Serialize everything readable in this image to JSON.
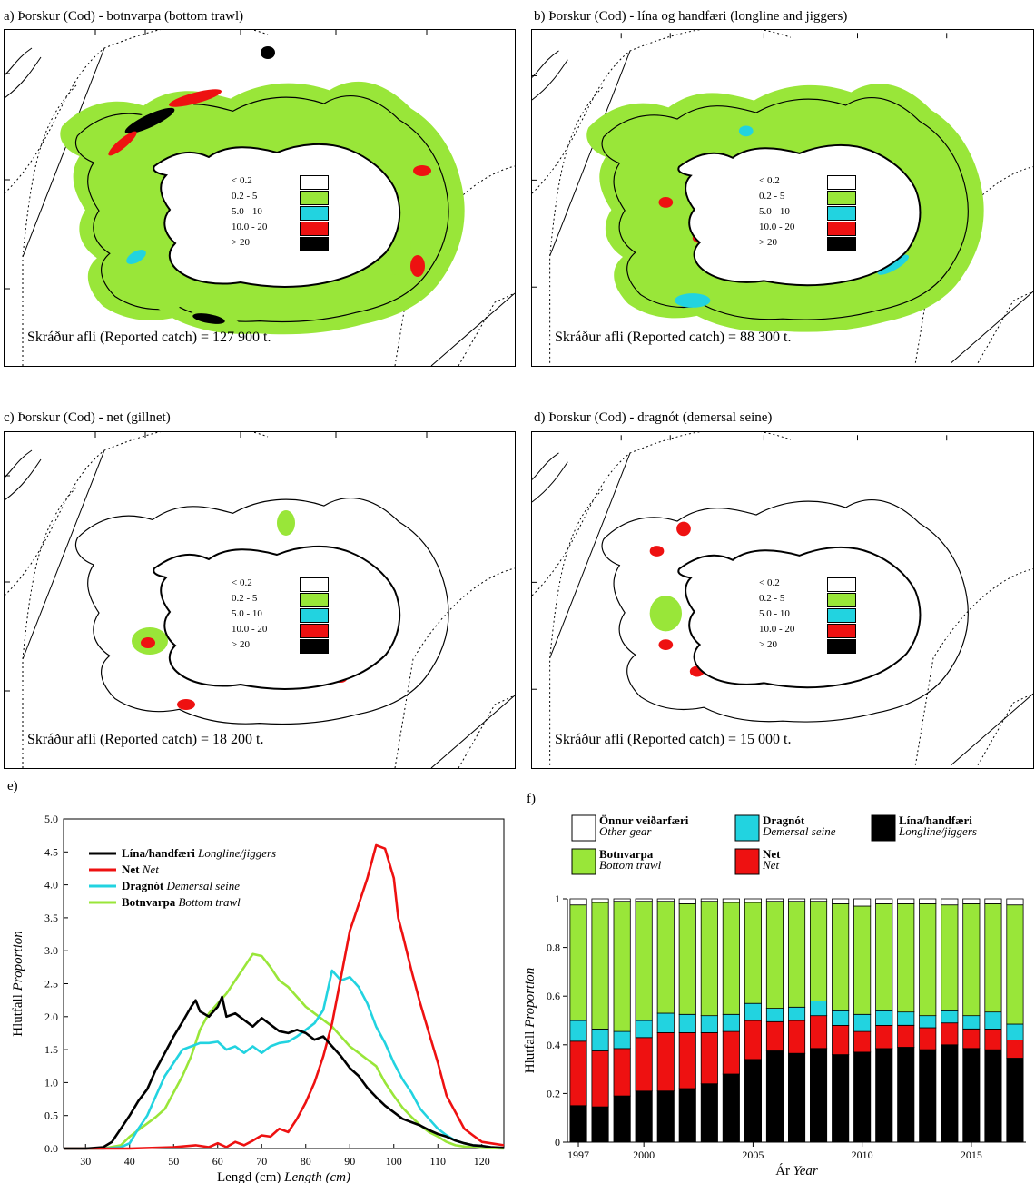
{
  "maps": [
    {
      "label": "a) Þorskur (Cod) - botnvarpa (bottom trawl)",
      "catch": "Skráður afli (Reported catch) = 127 900 t."
    },
    {
      "label": "b) Þorskur (Cod) - lína og handfæri (longline and jiggers)",
      "catch": "Skráður afli (Reported catch) = 88 300 t."
    },
    {
      "label": "c) Þorskur (Cod) - net (gillnet)",
      "catch": "Skráður afli (Reported catch) = 18 200 t."
    },
    {
      "label": "d) Þorskur (Cod) - dragnót (demersal seine)",
      "catch": "Skráður afli (Reported catch) = 15 000 t."
    }
  ],
  "map_legend": {
    "labels": [
      "< 0.2",
      "0.2 -  5",
      "5.0 - 10",
      "10.0 - 20",
      "> 20"
    ],
    "colors": [
      "#ffffff",
      "#99e639",
      "#22d3e0",
      "#ee1111",
      "#000000"
    ]
  },
  "panel_e_label": "e)",
  "panel_f_label": "f)",
  "chart_data": [
    {
      "type": "line",
      "xlabel": "Lengd (cm)",
      "xlabel_en": "Length (cm)",
      "ylabel": "Hlutfall",
      "ylabel_en": "Proportion",
      "xlim": [
        25,
        125
      ],
      "ylim": [
        0,
        5
      ],
      "xticks": [
        30,
        40,
        50,
        60,
        70,
        80,
        90,
        100,
        110,
        120
      ],
      "yticks": [
        "0.0",
        "0.5",
        "1.0",
        "1.5",
        "2.0",
        "2.5",
        "3.0",
        "3.5",
        "4.0",
        "4.5",
        "5.0"
      ],
      "legend_position": "top-left",
      "series": [
        {
          "name": "Lína/handfæri",
          "name_en": "Longline/jiggers",
          "color": "#000000",
          "x": [
            25,
            30,
            34,
            36,
            38,
            40,
            42,
            44,
            46,
            48,
            50,
            52,
            54,
            55,
            56,
            58,
            60,
            61,
            62,
            64,
            66,
            68,
            70,
            72,
            74,
            76,
            78,
            80,
            82,
            84,
            86,
            88,
            90,
            92,
            94,
            96,
            98,
            100,
            102,
            104,
            106,
            108,
            110,
            112,
            114,
            116,
            118,
            120,
            122,
            125
          ],
          "y": [
            0,
            0,
            0.02,
            0.1,
            0.3,
            0.5,
            0.72,
            0.9,
            1.2,
            1.45,
            1.7,
            1.92,
            2.15,
            2.25,
            2.08,
            2.0,
            2.15,
            2.3,
            2.0,
            2.05,
            1.95,
            1.85,
            1.98,
            1.88,
            1.78,
            1.75,
            1.8,
            1.75,
            1.65,
            1.7,
            1.55,
            1.4,
            1.22,
            1.1,
            0.92,
            0.78,
            0.65,
            0.55,
            0.45,
            0.4,
            0.35,
            0.28,
            0.22,
            0.18,
            0.12,
            0.08,
            0.05,
            0.04,
            0.02,
            0.01
          ]
        },
        {
          "name": "Net",
          "name_en": "Net",
          "color": "#ee1111",
          "x": [
            25,
            40,
            50,
            55,
            58,
            60,
            62,
            64,
            66,
            68,
            70,
            72,
            74,
            76,
            78,
            80,
            82,
            84,
            86,
            88,
            90,
            92,
            94,
            96,
            98,
            100,
            101,
            102,
            104,
            106,
            108,
            110,
            112,
            114,
            116,
            118,
            120,
            122,
            125
          ],
          "y": [
            0,
            0,
            0.02,
            0.05,
            0.02,
            0.08,
            0.02,
            0.1,
            0.05,
            0.12,
            0.2,
            0.18,
            0.3,
            0.25,
            0.45,
            0.7,
            1.0,
            1.4,
            1.9,
            2.6,
            3.3,
            3.7,
            4.1,
            4.6,
            4.55,
            4.1,
            3.5,
            3.25,
            2.7,
            2.2,
            1.75,
            1.3,
            0.8,
            0.55,
            0.3,
            0.2,
            0.1,
            0.08,
            0.05
          ]
        },
        {
          "name": "Dragnót",
          "name_en": "Demersal seine",
          "color": "#22d3e0",
          "x": [
            25,
            34,
            38,
            40,
            42,
            44,
            46,
            48,
            50,
            52,
            54,
            56,
            58,
            60,
            62,
            64,
            66,
            68,
            70,
            72,
            74,
            76,
            78,
            80,
            82,
            84,
            86,
            88,
            90,
            92,
            94,
            96,
            98,
            100,
            102,
            104,
            106,
            108,
            110,
            112,
            114,
            116,
            118,
            120,
            122,
            125
          ],
          "y": [
            0,
            0,
            0.02,
            0.08,
            0.3,
            0.5,
            0.8,
            1.1,
            1.3,
            1.5,
            1.55,
            1.6,
            1.6,
            1.62,
            1.5,
            1.55,
            1.45,
            1.55,
            1.45,
            1.55,
            1.6,
            1.62,
            1.7,
            1.8,
            1.9,
            2.1,
            2.7,
            2.55,
            2.6,
            2.45,
            2.2,
            1.85,
            1.6,
            1.3,
            1.05,
            0.85,
            0.6,
            0.45,
            0.3,
            0.2,
            0.12,
            0.08,
            0.05,
            0.04,
            0.02,
            0.01
          ]
        },
        {
          "name": "Botnvarpa",
          "name_en": "Bottom trawl",
          "color": "#99e639",
          "x": [
            25,
            34,
            38,
            40,
            42,
            44,
            46,
            48,
            50,
            52,
            54,
            56,
            58,
            60,
            62,
            64,
            66,
            68,
            70,
            72,
            74,
            76,
            78,
            80,
            82,
            84,
            86,
            88,
            90,
            92,
            94,
            96,
            98,
            100,
            102,
            104,
            106,
            108,
            110,
            112,
            114,
            116,
            118,
            120,
            125
          ],
          "y": [
            0,
            0,
            0.05,
            0.18,
            0.28,
            0.38,
            0.48,
            0.6,
            0.85,
            1.1,
            1.4,
            1.8,
            2.05,
            2.2,
            2.35,
            2.55,
            2.75,
            2.95,
            2.92,
            2.75,
            2.55,
            2.45,
            2.3,
            2.15,
            2.05,
            1.95,
            1.85,
            1.7,
            1.55,
            1.45,
            1.35,
            1.25,
            1.0,
            0.8,
            0.62,
            0.48,
            0.35,
            0.25,
            0.18,
            0.1,
            0.05,
            0.03,
            0.02,
            0.01,
            0
          ]
        }
      ]
    },
    {
      "type": "bar",
      "stacked": true,
      "xlabel": "Ár",
      "xlabel_en": "Year",
      "ylabel": "Hlutfall",
      "ylabel_en": "Proportion",
      "ylim": [
        0,
        1
      ],
      "yticks": [
        "0",
        "0.2",
        "0.4",
        "0.6",
        "0.8",
        "1"
      ],
      "xticks": [
        "1997",
        "2000",
        "2005",
        "2010",
        "2015"
      ],
      "categories": [
        1997,
        1998,
        1999,
        2000,
        2001,
        2002,
        2003,
        2004,
        2005,
        2006,
        2007,
        2008,
        2009,
        2010,
        2011,
        2012,
        2013,
        2014,
        2015,
        2016,
        2017
      ],
      "legend_position": "top",
      "series": [
        {
          "name": "Lína/handfæri",
          "name_en": "Longline/jiggers",
          "color": "#000000",
          "values": [
            0.15,
            0.145,
            0.19,
            0.21,
            0.21,
            0.22,
            0.24,
            0.28,
            0.34,
            0.375,
            0.365,
            0.385,
            0.36,
            0.37,
            0.385,
            0.39,
            0.38,
            0.4,
            0.385,
            0.38,
            0.345
          ]
        },
        {
          "name": "Net",
          "name_en": "Net",
          "color": "#ee1111",
          "values": [
            0.265,
            0.23,
            0.195,
            0.22,
            0.24,
            0.23,
            0.21,
            0.175,
            0.16,
            0.12,
            0.135,
            0.135,
            0.12,
            0.085,
            0.095,
            0.09,
            0.09,
            0.09,
            0.08,
            0.085,
            0.075
          ]
        },
        {
          "name": "Dragnót",
          "name_en": "Demersal seine",
          "color": "#22d3e0",
          "values": [
            0.085,
            0.09,
            0.07,
            0.07,
            0.08,
            0.075,
            0.07,
            0.07,
            0.07,
            0.055,
            0.055,
            0.06,
            0.06,
            0.07,
            0.06,
            0.055,
            0.05,
            0.05,
            0.055,
            0.07,
            0.065
          ]
        },
        {
          "name": "Botnvarpa",
          "name_en": "Bottom trawl",
          "color": "#99e639",
          "values": [
            0.475,
            0.52,
            0.535,
            0.49,
            0.46,
            0.455,
            0.47,
            0.46,
            0.415,
            0.44,
            0.435,
            0.41,
            0.44,
            0.445,
            0.44,
            0.445,
            0.46,
            0.435,
            0.46,
            0.445,
            0.49
          ]
        },
        {
          "name": "Önnur veiðarfæri",
          "name_en": "Other gear",
          "color": "#ffffff",
          "values": [
            0.025,
            0.015,
            0.01,
            0.01,
            0.01,
            0.02,
            0.01,
            0.015,
            0.015,
            0.01,
            0.01,
            0.01,
            0.02,
            0.03,
            0.02,
            0.02,
            0.02,
            0.025,
            0.02,
            0.02,
            0.025
          ]
        }
      ]
    }
  ]
}
